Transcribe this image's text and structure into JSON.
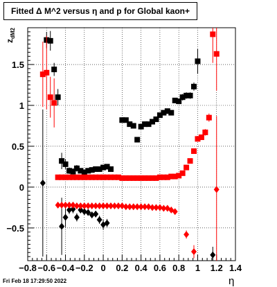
{
  "chart_data": {
    "type": "scatter",
    "title": "Fitted Δ M^2 versus η and p for Global kaon+",
    "xlabel": "η",
    "ylabel": "z_dM2",
    "xlim": [
      -0.8,
      1.4
    ],
    "ylim": [
      -0.9,
      1.95
    ],
    "xticks": [
      "−0.8",
      "−0.6",
      "−0.4",
      "−0.2",
      "0",
      "0.2",
      "0.4",
      "0.6",
      "0.8",
      "1",
      "1.2",
      "1.4"
    ],
    "yticks": [
      "−0.5",
      "0",
      "0.5",
      "1",
      "1.5"
    ],
    "grid": true,
    "colors": {
      "black": "#000000",
      "red": "#ff0000"
    },
    "series": [
      {
        "marker": "square",
        "color": "#000000",
        "points": [
          [
            -0.6,
            1.8,
            0.1
          ],
          [
            -0.56,
            1.79,
            0.12
          ],
          [
            -0.52,
            1.44,
            0.08
          ],
          [
            -0.48,
            1.1,
            0.1
          ],
          [
            -0.44,
            0.32,
            0.1
          ],
          [
            -0.4,
            0.28,
            0.06
          ],
          [
            -0.36,
            0.2,
            0.04
          ],
          [
            -0.32,
            0.19,
            0.04
          ],
          [
            -0.28,
            0.23,
            0.04
          ],
          [
            -0.24,
            0.2,
            0.03
          ],
          [
            -0.2,
            0.18,
            0.03
          ],
          [
            -0.16,
            0.2,
            0.03
          ],
          [
            -0.12,
            0.21,
            0.03
          ],
          [
            -0.08,
            0.22,
            0.03
          ],
          [
            -0.04,
            0.22,
            0.03
          ],
          [
            0.0,
            0.24,
            0.03
          ],
          [
            0.04,
            0.25,
            0.03
          ],
          [
            0.08,
            0.22,
            0.03
          ],
          [
            0.2,
            0.82,
            0.02
          ],
          [
            0.24,
            0.82,
            0.02
          ],
          [
            0.28,
            0.77,
            0.02
          ],
          [
            0.32,
            0.75,
            0.02
          ],
          [
            0.36,
            0.58,
            0.02
          ],
          [
            0.4,
            0.74,
            0.02
          ],
          [
            0.44,
            0.77,
            0.02
          ],
          [
            0.48,
            0.77,
            0.02
          ],
          [
            0.52,
            0.8,
            0.02
          ],
          [
            0.56,
            0.83,
            0.02
          ],
          [
            0.6,
            0.88,
            0.02
          ],
          [
            0.64,
            0.91,
            0.02
          ],
          [
            0.68,
            0.93,
            0.02
          ],
          [
            0.72,
            0.91,
            0.02
          ],
          [
            0.76,
            1.06,
            0.03
          ],
          [
            0.8,
            1.05,
            0.03
          ],
          [
            0.84,
            1.1,
            0.04
          ],
          [
            0.88,
            1.12,
            0.04
          ],
          [
            0.92,
            1.12,
            0.04
          ],
          [
            0.96,
            1.23,
            0.05
          ],
          [
            1.0,
            1.54,
            0.15
          ]
        ]
      },
      {
        "marker": "square",
        "color": "#ff0000",
        "points": [
          [
            -0.64,
            1.38,
            0.4
          ],
          [
            -0.6,
            1.4,
            0.45
          ],
          [
            -0.56,
            1.1,
            0.25
          ],
          [
            -0.52,
            1.03,
            0.3
          ],
          [
            -0.48,
            0.12,
            0.02
          ],
          [
            -0.44,
            0.12,
            0.02
          ],
          [
            -0.4,
            0.12,
            0.02
          ],
          [
            -0.36,
            0.12,
            0.02
          ],
          [
            -0.32,
            0.12,
            0.02
          ],
          [
            -0.28,
            0.12,
            0.02
          ],
          [
            -0.24,
            0.12,
            0.02
          ],
          [
            -0.2,
            0.12,
            0.02
          ],
          [
            -0.16,
            0.12,
            0.02
          ],
          [
            -0.12,
            0.12,
            0.02
          ],
          [
            -0.08,
            0.12,
            0.02
          ],
          [
            -0.04,
            0.12,
            0.02
          ],
          [
            0.0,
            0.12,
            0.02
          ],
          [
            0.04,
            0.12,
            0.02
          ],
          [
            0.08,
            0.12,
            0.02
          ],
          [
            0.12,
            0.12,
            0.02
          ],
          [
            0.16,
            0.12,
            0.02
          ],
          [
            0.2,
            0.11,
            0.02
          ],
          [
            0.24,
            0.11,
            0.02
          ],
          [
            0.28,
            0.11,
            0.02
          ],
          [
            0.32,
            0.11,
            0.02
          ],
          [
            0.36,
            0.11,
            0.02
          ],
          [
            0.4,
            0.11,
            0.02
          ],
          [
            0.44,
            0.11,
            0.02
          ],
          [
            0.48,
            0.11,
            0.02
          ],
          [
            0.52,
            0.11,
            0.02
          ],
          [
            0.56,
            0.11,
            0.02
          ],
          [
            0.6,
            0.12,
            0.02
          ],
          [
            0.64,
            0.12,
            0.02
          ],
          [
            0.68,
            0.12,
            0.02
          ],
          [
            0.72,
            0.13,
            0.02
          ],
          [
            0.76,
            0.13,
            0.02
          ],
          [
            0.8,
            0.14,
            0.02
          ],
          [
            0.84,
            0.17,
            0.02
          ],
          [
            0.88,
            0.24,
            0.02
          ],
          [
            0.92,
            0.32,
            0.02
          ],
          [
            0.96,
            0.44,
            0.02
          ],
          [
            1.0,
            0.59,
            0.03
          ],
          [
            1.04,
            0.61,
            0.03
          ],
          [
            1.08,
            0.67,
            0.04
          ],
          [
            1.12,
            0.85,
            0.05
          ],
          [
            1.16,
            1.87,
            0.35
          ],
          [
            1.2,
            1.63,
            0.45
          ]
        ]
      },
      {
        "marker": "diamond",
        "color": "#000000",
        "points": [
          [
            -0.64,
            0.05,
            0.9
          ],
          [
            -0.44,
            -0.48,
            0.35
          ],
          [
            -0.4,
            -0.37,
            0.12
          ],
          [
            -0.36,
            -0.28,
            0.05
          ],
          [
            -0.32,
            -0.27,
            0.05
          ],
          [
            -0.28,
            -0.37,
            0.05
          ],
          [
            -0.24,
            -0.28,
            0.04
          ],
          [
            -0.2,
            -0.3,
            0.04
          ],
          [
            -0.16,
            -0.31,
            0.04
          ],
          [
            -0.12,
            -0.34,
            0.04
          ],
          [
            -0.08,
            -0.33,
            0.04
          ],
          [
            -0.04,
            -0.4,
            0.05
          ],
          [
            0.0,
            -0.46,
            0.06
          ],
          [
            0.04,
            -0.44,
            0.05
          ],
          [
            1.16,
            -0.83,
            0.1
          ]
        ]
      },
      {
        "marker": "diamond",
        "color": "#ff0000",
        "points": [
          [
            -0.48,
            -0.22,
            0.02
          ],
          [
            -0.44,
            -0.22,
            0.02
          ],
          [
            -0.4,
            -0.22,
            0.02
          ],
          [
            -0.36,
            -0.22,
            0.02
          ],
          [
            -0.32,
            -0.22,
            0.02
          ],
          [
            -0.28,
            -0.23,
            0.02
          ],
          [
            -0.24,
            -0.23,
            0.02
          ],
          [
            -0.2,
            -0.23,
            0.02
          ],
          [
            -0.16,
            -0.23,
            0.02
          ],
          [
            -0.12,
            -0.23,
            0.02
          ],
          [
            -0.08,
            -0.23,
            0.02
          ],
          [
            -0.04,
            -0.23,
            0.02
          ],
          [
            0.0,
            -0.23,
            0.02
          ],
          [
            0.04,
            -0.23,
            0.02
          ],
          [
            0.08,
            -0.23,
            0.02
          ],
          [
            0.12,
            -0.23,
            0.02
          ],
          [
            0.16,
            -0.23,
            0.02
          ],
          [
            0.2,
            -0.23,
            0.02
          ],
          [
            0.24,
            -0.24,
            0.02
          ],
          [
            0.28,
            -0.24,
            0.02
          ],
          [
            0.32,
            -0.24,
            0.02
          ],
          [
            0.36,
            -0.24,
            0.02
          ],
          [
            0.4,
            -0.24,
            0.02
          ],
          [
            0.44,
            -0.24,
            0.02
          ],
          [
            0.48,
            -0.24,
            0.02
          ],
          [
            0.52,
            -0.25,
            0.02
          ],
          [
            0.56,
            -0.25,
            0.02
          ],
          [
            0.6,
            -0.25,
            0.02
          ],
          [
            0.64,
            -0.26,
            0.02
          ],
          [
            0.68,
            -0.26,
            0.02
          ],
          [
            0.72,
            -0.28,
            0.02
          ],
          [
            0.76,
            -0.3,
            0.02
          ],
          [
            0.88,
            -0.58,
            0.05
          ],
          [
            0.96,
            -0.79,
            0.08
          ],
          [
            1.2,
            -0.03,
            0.9
          ]
        ]
      }
    ]
  },
  "footer_text": "Fri Feb 18 17:29:50 2022"
}
